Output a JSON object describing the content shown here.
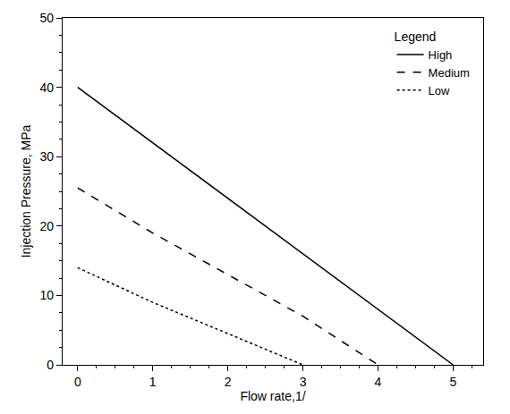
{
  "chart_data": {
    "type": "line",
    "x_label": "Flow rate,1/",
    "y_label": "Injection Pressure, MPa",
    "legend_title": "Legend",
    "legend": "upper right",
    "grid": false,
    "x": [
      0,
      1,
      2,
      3,
      4,
      5
    ],
    "series": [
      {
        "name": "High",
        "color": "#000000",
        "line_style": "solid",
        "values": [
          40,
          32,
          24,
          16,
          8,
          0
        ]
      },
      {
        "name": "Medium",
        "color": "#000000",
        "line_style": "dash",
        "values": [
          25.5,
          19,
          13,
          7,
          0,
          null
        ]
      },
      {
        "name": "Low",
        "color": "#000000",
        "line_style": "dot",
        "values": [
          14,
          9,
          4.5,
          0,
          null,
          null
        ]
      }
    ],
    "xlim": [
      -0.2,
      5.4
    ],
    "xticks": [
      0,
      1,
      2,
      3,
      4,
      5
    ],
    "ylim": [
      0,
      50
    ],
    "yticks": [
      0,
      10,
      20,
      30,
      40,
      50
    ]
  }
}
